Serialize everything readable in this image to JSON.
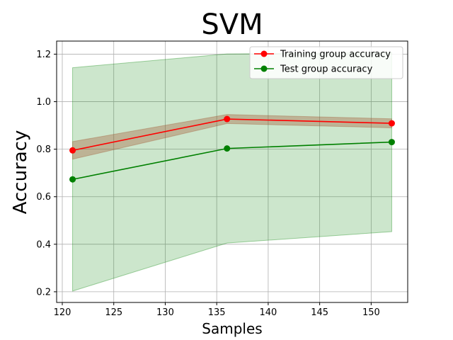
{
  "chart_data": {
    "type": "line",
    "title": "SVM",
    "xlabel": "Samples",
    "ylabel": "Accuracy",
    "x": [
      121,
      136,
      152
    ],
    "xlim": [
      119.45,
      153.55
    ],
    "ylim": [
      0.155,
      1.255
    ],
    "xticks": [
      120,
      125,
      130,
      135,
      140,
      145,
      150
    ],
    "yticks": [
      0.2,
      0.4,
      0.6,
      0.8,
      1.0,
      1.2
    ],
    "ytick_labels": [
      "0.2",
      "0.4",
      "0.6",
      "0.8",
      "1.0",
      "1.2"
    ],
    "grid": true,
    "legend_position": "top-right",
    "series": [
      {
        "name": "Training group accuracy",
        "color": "#ff0000",
        "marker": "circle",
        "values": [
          0.795,
          0.927,
          0.909
        ],
        "band_lower": [
          0.758,
          0.908,
          0.89
        ],
        "band_upper": [
          0.832,
          0.946,
          0.928
        ],
        "band_color": "#a0522d"
      },
      {
        "name": "Test group accuracy",
        "color": "#008000",
        "marker": "circle",
        "values": [
          0.673,
          0.803,
          0.83
        ],
        "band_lower": [
          0.203,
          0.405,
          0.453
        ],
        "band_upper": [
          1.143,
          1.201,
          1.207
        ],
        "band_color": "#008000"
      }
    ]
  }
}
